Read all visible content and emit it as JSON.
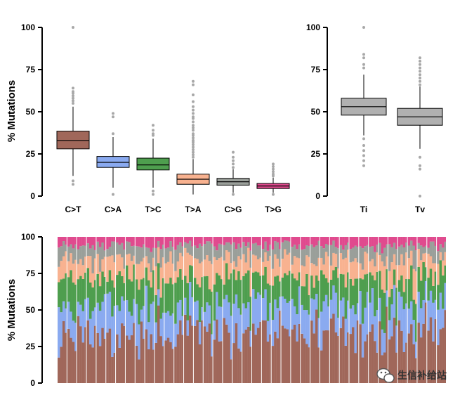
{
  "watermark": {
    "text": "生信补给站",
    "icon": "wechat-icon"
  },
  "colors": {
    "C>T": "#A0675A",
    "C>A": "#8AAAF0",
    "T>C": "#4E9E4E",
    "T>A": "#F8B290",
    "C>G": "#9A9F9A",
    "T>G": "#E04A8E",
    "Ti": "#B0B0B0",
    "Tv": "#B0B0B0",
    "outlier": "#A8A8A8"
  },
  "chart_data": [
    {
      "type": "box",
      "ylabel": "% Mutations",
      "ylim": [
        0,
        100
      ],
      "yticks": [
        "0",
        "25",
        "50",
        "75",
        "100"
      ],
      "categories": [
        "C>T",
        "C>A",
        "T>C",
        "T>A",
        "C>G",
        "T>G"
      ],
      "boxes": [
        {
          "label": "C>T",
          "q1": 28,
          "median": 33,
          "q3": 38.5,
          "whisker_low": 12,
          "whisker_high": 53,
          "outliers": [
            7,
            9,
            55,
            56.5,
            58,
            59.5,
            61,
            62,
            64,
            100
          ]
        },
        {
          "label": "C>A",
          "q1": 17,
          "median": 20,
          "q3": 23.5,
          "whisker_low": 5,
          "whisker_high": 35,
          "outliers": [
            1,
            37,
            47,
            49
          ]
        },
        {
          "label": "T>C",
          "q1": 15.5,
          "median": 18.5,
          "q3": 22.5,
          "whisker_low": 5,
          "whisker_high": 34,
          "outliers": [
            1,
            3,
            36,
            37,
            39,
            42
          ]
        },
        {
          "label": "T>A",
          "q1": 7,
          "median": 10,
          "q3": 13,
          "whisker_low": 1,
          "whisker_high": 22,
          "outliers": [
            23,
            24.5,
            26,
            27.5,
            29,
            30.5,
            32,
            33,
            34.5,
            36,
            37,
            39,
            40.5,
            42,
            44,
            46,
            47,
            49,
            51,
            53,
            56,
            60,
            66,
            68
          ]
        },
        {
          "label": "C>G",
          "q1": 6.5,
          "median": 8.5,
          "q3": 10.5,
          "whisker_low": 2,
          "whisker_high": 16,
          "outliers": [
            1,
            17,
            19,
            21,
            23,
            26
          ]
        },
        {
          "label": "T>G",
          "q1": 4.5,
          "median": 6,
          "q3": 7.5,
          "whisker_low": 2,
          "whisker_high": 11,
          "outliers": [
            1,
            12,
            13,
            14.5,
            16,
            17.5,
            19
          ]
        }
      ]
    },
    {
      "type": "box",
      "ylabel": "",
      "ylim": [
        0,
        100
      ],
      "yticks": [
        "0",
        "25",
        "50",
        "75",
        "100"
      ],
      "categories": [
        "Ti",
        "Tv"
      ],
      "boxes": [
        {
          "label": "Ti",
          "q1": 48,
          "median": 53,
          "q3": 58,
          "whisker_low": 36,
          "whisker_high": 72,
          "outliers": [
            18,
            21,
            24,
            27,
            30,
            34,
            76,
            78,
            82,
            84,
            100
          ]
        },
        {
          "label": "Tv",
          "q1": 42,
          "median": 47,
          "q3": 52,
          "whisker_low": 28,
          "whisker_high": 65,
          "outliers": [
            0,
            16,
            18,
            23,
            66,
            68,
            70,
            72,
            74,
            76,
            78,
            80,
            82
          ]
        }
      ]
    },
    {
      "type": "stacked_bar",
      "ylabel": "% Mutations",
      "ylim": [
        0,
        100
      ],
      "yticks": [
        "0",
        "25",
        "50",
        "75",
        "100"
      ],
      "series_order": [
        "C>T",
        "C>A",
        "T>C",
        "T>A",
        "C>G",
        "T>G"
      ],
      "sample_count": 160,
      "series_means": {
        "C>T": 33,
        "C>A": 20,
        "T>C": 19,
        "T>A": 13,
        "C>G": 9,
        "T>G": 6
      }
    }
  ]
}
